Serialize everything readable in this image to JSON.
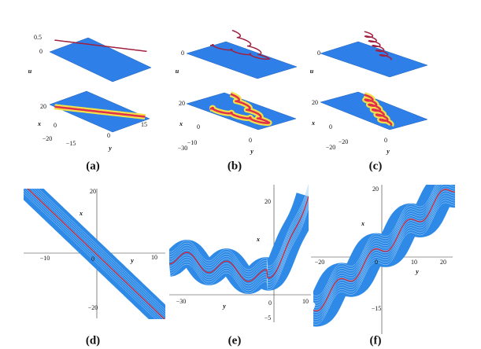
{
  "panels": [
    {
      "label": "(a)",
      "texts": [
        "0.5",
        "0",
        "u",
        "20",
        "x",
        "0",
        "−20",
        "−15",
        "0",
        "y",
        "15"
      ]
    },
    {
      "label": "(b)",
      "texts": [
        "0",
        "u",
        "20",
        "x",
        "0",
        "−10",
        "−30",
        "0",
        "y"
      ]
    },
    {
      "label": "(c)",
      "texts": [
        "0",
        "u",
        "20",
        "x",
        "0",
        "−20",
        "−20",
        "0",
        "y"
      ]
    },
    {
      "label": "(d)",
      "texts": [
        "20",
        "x",
        "−10",
        "0",
        "y",
        "10",
        "−20"
      ]
    },
    {
      "label": "(e)",
      "texts": [
        "20",
        "x",
        "−30",
        "y",
        "0",
        "10",
        "−5"
      ]
    },
    {
      "label": "(f)",
      "texts": [
        "20",
        "x",
        "−20",
        "0",
        "10",
        "y",
        "20",
        "−15"
      ]
    }
  ]
}
